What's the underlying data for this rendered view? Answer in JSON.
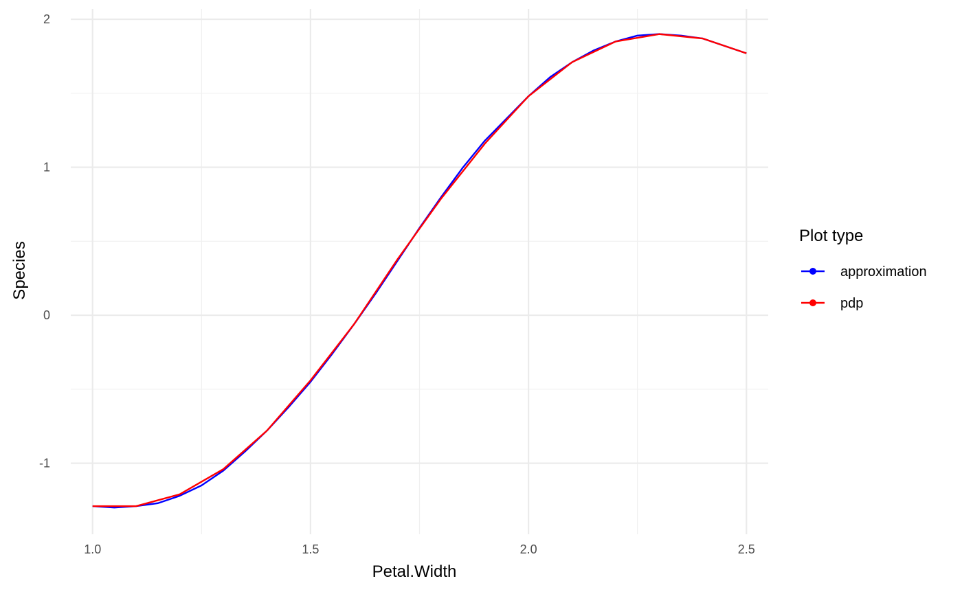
{
  "chart_data": {
    "type": "line",
    "xlabel": "Petal.Width",
    "ylabel": "Species",
    "xlim": [
      0.95,
      2.55
    ],
    "ylim": [
      -1.48,
      2.07
    ],
    "x_ticks": [
      {
        "value": 1.0,
        "label": "1.0"
      },
      {
        "value": 1.5,
        "label": "1.5"
      },
      {
        "value": 2.0,
        "label": "2.0"
      },
      {
        "value": 2.5,
        "label": "2.5"
      }
    ],
    "y_ticks": [
      {
        "value": -1,
        "label": "-1"
      },
      {
        "value": 0,
        "label": "0"
      },
      {
        "value": 1,
        "label": "1"
      },
      {
        "value": 2,
        "label": "2"
      }
    ],
    "x_minor": [
      1.25,
      1.75,
      2.25
    ],
    "y_minor": [
      -0.5,
      0.5,
      1.5
    ],
    "grid": true,
    "legend": {
      "title": "Plot type",
      "position": "right"
    },
    "series": [
      {
        "name": "approximation",
        "color": "#0000ff",
        "x": [
          1.0,
          1.05,
          1.1,
          1.15,
          1.2,
          1.25,
          1.3,
          1.35,
          1.4,
          1.45,
          1.5,
          1.55,
          1.6,
          1.65,
          1.7,
          1.75,
          1.8,
          1.85,
          1.9,
          1.95,
          2.0,
          2.05,
          2.1,
          2.15,
          2.2,
          2.25,
          2.3,
          2.35,
          2.4,
          2.45,
          2.5
        ],
        "y": [
          -1.29,
          -1.3,
          -1.29,
          -1.27,
          -1.22,
          -1.15,
          -1.05,
          -0.92,
          -0.78,
          -0.62,
          -0.45,
          -0.26,
          -0.06,
          0.15,
          0.37,
          0.59,
          0.8,
          1.0,
          1.18,
          1.33,
          1.48,
          1.61,
          1.71,
          1.79,
          1.85,
          1.89,
          1.9,
          1.89,
          1.87,
          1.82,
          1.77
        ]
      },
      {
        "name": "pdp",
        "color": "#ff0000",
        "x": [
          1.0,
          1.1,
          1.2,
          1.3,
          1.4,
          1.5,
          1.6,
          1.7,
          1.8,
          1.9,
          2.0,
          2.1,
          2.2,
          2.3,
          2.4,
          2.5
        ],
        "y": [
          -1.29,
          -1.29,
          -1.21,
          -1.04,
          -0.78,
          -0.44,
          -0.06,
          0.38,
          0.79,
          1.16,
          1.48,
          1.71,
          1.85,
          1.9,
          1.87,
          1.77
        ]
      }
    ]
  }
}
